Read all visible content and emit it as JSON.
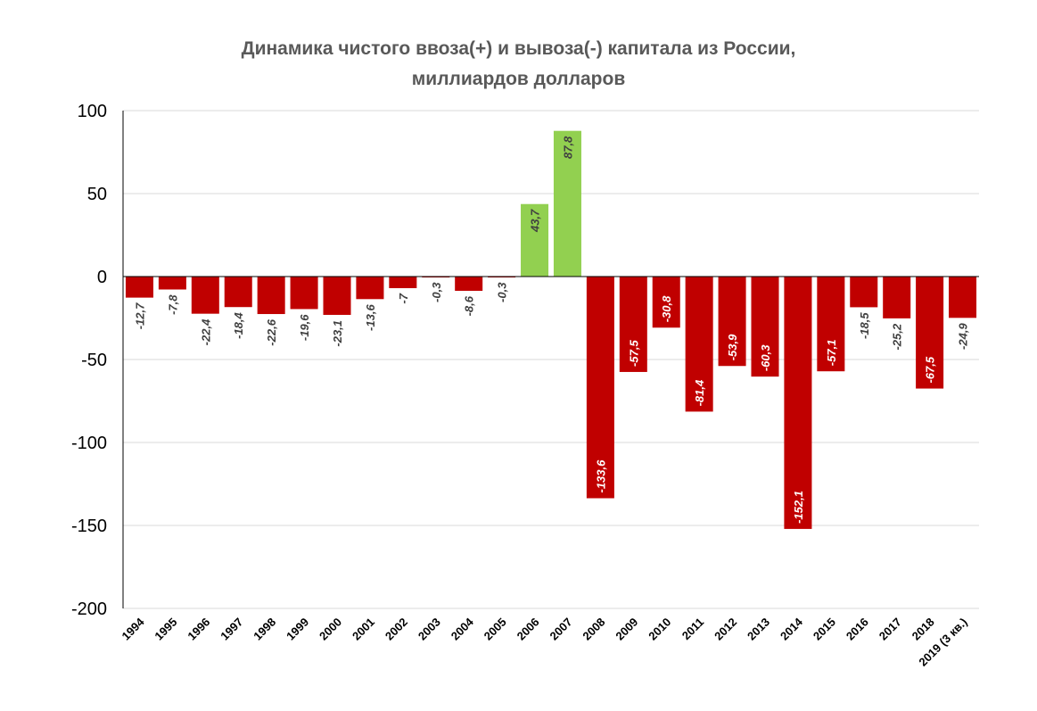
{
  "chart_data": {
    "type": "bar",
    "title_lines": [
      "Динамика чистого ввоза(+) и вывоза(-) капитала из России,",
      "миллиардов долларов"
    ],
    "categories": [
      "1994",
      "1995",
      "1996",
      "1997",
      "1998",
      "1999",
      "2000",
      "2001",
      "2002",
      "2003",
      "2004",
      "2005",
      "2006",
      "2007",
      "2008",
      "2009",
      "2010",
      "2011",
      "2012",
      "2013",
      "2014",
      "2015",
      "2016",
      "2017",
      "2018",
      "2019 (3 кв.)"
    ],
    "values": [
      -12.7,
      -7.8,
      -22.4,
      -18.4,
      -22.6,
      -19.6,
      -23.1,
      -13.6,
      -7,
      -0.3,
      -8.6,
      -0.3,
      43.7,
      87.8,
      -133.6,
      -57.5,
      -30.8,
      -81.4,
      -53.9,
      -60.3,
      -152.1,
      -57.1,
      -18.5,
      -25.2,
      -67.5,
      -24.9
    ],
    "data_labels": [
      "-12,7",
      "-7,8",
      "-22,4",
      "-18,4",
      "-22,6",
      "-19,6",
      "-23,1",
      "-13,6",
      "-7",
      "-0,3",
      "-8,6",
      "-0,3",
      "43,7",
      "87,8",
      "-133,6",
      "-57,5",
      "-30,8",
      "-81,4",
      "-53,9",
      "-60,3",
      "-152,1",
      "-57,1",
      "-18,5",
      "-25,2",
      "-67,5",
      "-24,9"
    ],
    "ylim": [
      -200,
      100
    ],
    "yticks": [
      100,
      50,
      0,
      -50,
      -100,
      -150,
      -200
    ],
    "ytick_labels": [
      "100",
      "50",
      "0",
      "-50",
      "-100",
      "-150",
      "-200"
    ],
    "xlabel": "",
    "ylabel": "",
    "grid": true,
    "legend": "none",
    "colors": {
      "positive": "#92d050",
      "negative": "#c00000",
      "grid": "#d9d9d9",
      "axis": "#000000"
    }
  }
}
